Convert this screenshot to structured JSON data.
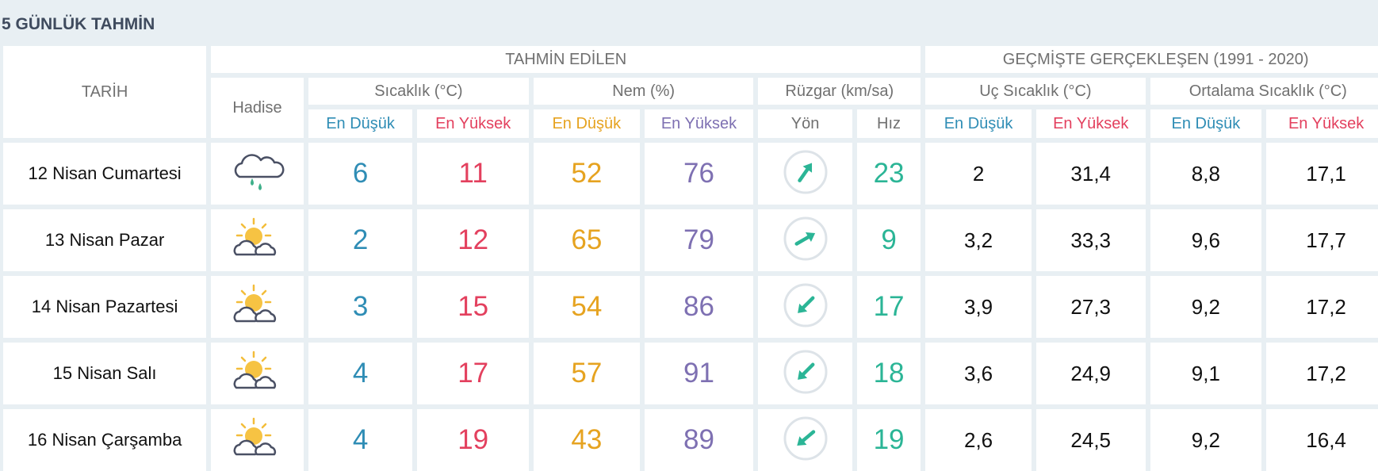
{
  "header": {
    "title": "5 GÜNLÜK TAHMİN"
  },
  "table": {
    "columns": {
      "date": "TARİH",
      "forecast": "TAHMİN EDİLEN",
      "past": "GEÇMİŞTE GERÇEKLEŞEN (1991 - 2020)",
      "event": "Hadise",
      "temp": "Sıcaklık (°C)",
      "humidity": "Nem (%)",
      "wind": "Rüzgar (km/sa)",
      "extreme": "Uç Sıcaklık (°C)",
      "average": "Ortalama Sıcaklık (°C)"
    },
    "subheaders": [
      "En Düşük",
      "En Yüksek",
      "En Düşük",
      "En Yüksek",
      "Yön",
      "Hız",
      "En Düşük",
      "En Yüksek",
      "En Düşük",
      "En Yüksek"
    ],
    "rows": [
      {
        "date": "12 Nisan Cumartesi",
        "temp_low": 6,
        "temp_high": 11,
        "hum_low": 52,
        "hum_high": 76,
        "wind_speed": 23,
        "ext_low": 2,
        "ext_high": "31,4",
        "avg_low": "8,8",
        "avg_high": "17,1"
      },
      {
        "date": "13 Nisan Pazar",
        "temp_low": 2,
        "temp_high": 12,
        "hum_low": 65,
        "hum_high": 79,
        "wind_speed": 9,
        "ext_low": "3,2",
        "ext_high": "33,3",
        "avg_low": "9,6",
        "avg_high": "17,7"
      },
      {
        "date": "14 Nisan Pazartesi",
        "temp_low": 3,
        "temp_high": 15,
        "hum_low": 54,
        "hum_high": 86,
        "wind_speed": 17,
        "ext_low": "3,9",
        "ext_high": "27,3",
        "avg_low": "9,2",
        "avg_high": "17,2"
      },
      {
        "date": "15 Nisan Salı",
        "temp_low": 4,
        "temp_high": 17,
        "hum_low": 57,
        "hum_high": 91,
        "wind_speed": 18,
        "ext_low": "3,6",
        "ext_high": "24,9",
        "avg_low": "9,1",
        "avg_high": "17,2"
      },
      {
        "date": "16 Nisan Çarşamba",
        "temp_low": 4,
        "temp_high": 19,
        "hum_low": 43,
        "hum_high": 89,
        "wind_speed": 19,
        "ext_low": "2,6",
        "ext_high": "24,5",
        "avg_low": "9,2",
        "avg_high": "16,4"
      }
    ]
  }
}
